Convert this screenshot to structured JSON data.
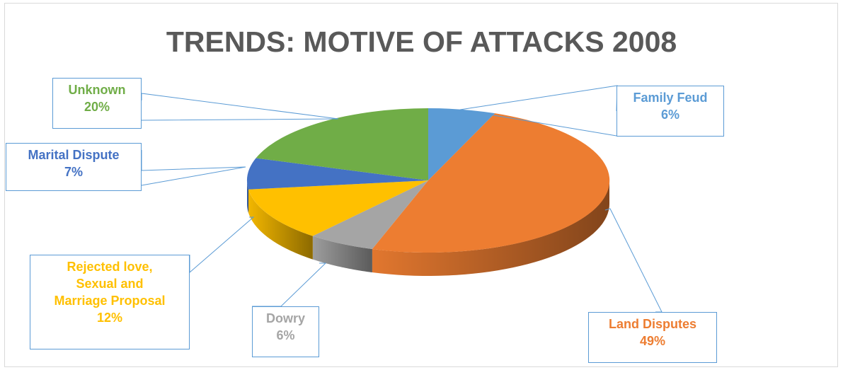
{
  "chart_data": {
    "type": "pie",
    "title": "TRENDS: MOTIVE OF ATTACKS 2008",
    "style": "3d",
    "slices": [
      {
        "label": "Family Feud",
        "value": 6,
        "value_label": "6%",
        "color": "#5b9bd5"
      },
      {
        "label": "Land Disputes",
        "value": 49,
        "value_label": "49%",
        "color": "#ed7d31"
      },
      {
        "label": "Dowry",
        "value": 6,
        "value_label": "6%",
        "color": "#a5a5a5"
      },
      {
        "label": "Rejected love, Sexual and Marriage Proposal",
        "value": 12,
        "value_label": "12%",
        "color": "#ffc000"
      },
      {
        "label": "Marital Dispute",
        "value": 7,
        "value_label": "7%",
        "color": "#4472c4"
      },
      {
        "label": "Unknown",
        "value": 20,
        "value_label": "20%",
        "color": "#70ad47"
      }
    ]
  },
  "labels": {
    "family_feud": {
      "line1": "Family Feud",
      "pct": "6%"
    },
    "land_disputes": {
      "line1": "Land Disputes",
      "pct": "49%"
    },
    "dowry": {
      "line1": "Dowry",
      "pct": "6%"
    },
    "rejected": {
      "line1": "Rejected love,",
      "line2": "Sexual and",
      "line3": "Marriage Proposal",
      "pct": "12%"
    },
    "marital": {
      "line1": "Marital Dispute",
      "pct": "7%"
    },
    "unknown": {
      "line1": "Unknown",
      "pct": "20%"
    }
  }
}
